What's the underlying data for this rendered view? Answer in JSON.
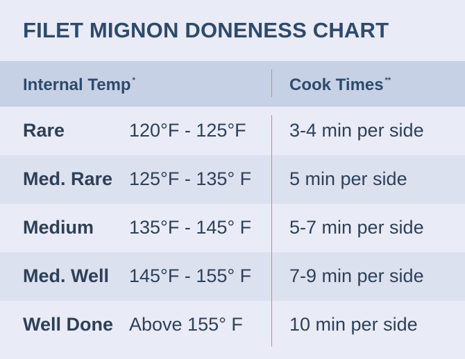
{
  "title": "FILET MIGNON DONENESS CHART",
  "header": {
    "col1": "Internal Temp",
    "col1_mark": "*",
    "col2": "Cook Times",
    "col2_mark": "**"
  },
  "rows": [
    {
      "level": "Rare",
      "temp": "120°F - 125°F",
      "time": "3-4 min per side"
    },
    {
      "level": "Med. Rare",
      "temp": "125°F - 135° F",
      "time": "5 min per side"
    },
    {
      "level": "Medium",
      "temp": "135°F - 145° F",
      "time": "5-7 min per side"
    },
    {
      "level": "Med. Well",
      "temp": "145°F - 155° F",
      "time": "7-9 min per side"
    },
    {
      "level": "Well Done",
      "temp": "Above 155° F",
      "time": "10 min per side"
    }
  ],
  "colors": {
    "background": "#e9ebf6",
    "header_band": "#c7d1e5",
    "stripe": "#dce1ef",
    "text": "#2e4057",
    "divider": "#c8878f"
  }
}
